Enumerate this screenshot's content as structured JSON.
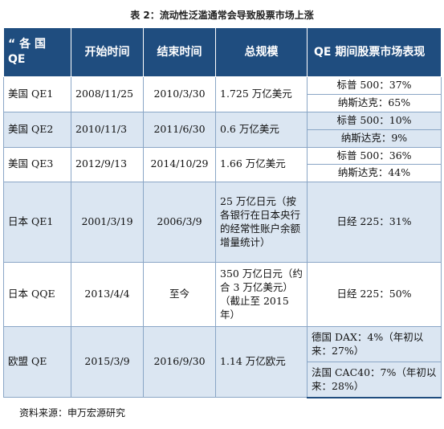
{
  "caption": "表 2：流动性泛滥通常会导致股票市场上涨",
  "headers": [
    "“ 各 国 QE",
    "开始时间",
    "结束时间",
    "总规模",
    "QE 期间股票市场表现"
  ],
  "rows": [
    {
      "name": "美国 QE1",
      "start": "2008/11/25",
      "end": "2010/3/30",
      "scale": "1.725 万亿美元",
      "perf": [
        "标普 500：37%",
        "纳斯达克：65%"
      ]
    },
    {
      "name": "美国 QE2",
      "start": "2010/11/3",
      "end": "2011/6/30",
      "scale": "0.6 万亿美元",
      "perf": [
        "标普 500：10%",
        "纳斯达克：9%"
      ]
    },
    {
      "name": "美国 QE3",
      "start": "2012/9/13",
      "end": "2014/10/29",
      "scale": "1.66 万亿美元",
      "perf": [
        "标普 500：36%",
        "纳斯达克：44%"
      ]
    },
    {
      "name": "日本 QE1",
      "start": "2001/3/19",
      "end": "2006/3/9",
      "scale": "25 万亿日元（按各银行在日本央行的经常性账户余额增量统计）",
      "perf": [
        "日经 225：31%"
      ]
    },
    {
      "name": "日本 QQE",
      "start": "2013/4/4",
      "end": "至今",
      "scale": "350 万亿日元（约合 3 万亿美元）（截止至 2015 年）",
      "perf": [
        "日经 225：50%"
      ]
    },
    {
      "name": "欧盟 QE",
      "start": "2015/3/9",
      "end": "2016/9/30",
      "scale": "1.14 万亿欧元",
      "perf": [
        "德国 DAX：4%（年初以来：27%）",
        "法国 CAC40：7%（年初以来：28%）"
      ]
    }
  ],
  "note": "资料来源：申万宏源研究"
}
